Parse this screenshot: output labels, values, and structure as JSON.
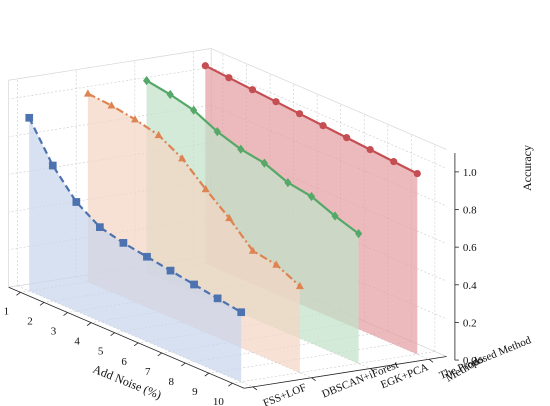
{
  "chart_data": {
    "type": "line",
    "projection": "3d-waterfall",
    "xlabel": "Add Noise (%)",
    "ylabel": "Methods",
    "zlabel": "Accuracy",
    "x": [
      1,
      2,
      3,
      4,
      5,
      6,
      7,
      8,
      9,
      10
    ],
    "x_ticks": [
      "1",
      "2",
      "3",
      "4",
      "5",
      "6",
      "7",
      "8",
      "9",
      "10"
    ],
    "zlim": [
      0.0,
      1.1
    ],
    "z_ticks": [
      "0.0",
      "0.2",
      "0.4",
      "0.6",
      "0.8",
      "1.0"
    ],
    "grid": true,
    "series": [
      {
        "name": "FSS+LOF",
        "color": "#4C72B0",
        "fill": "#c9d5ec",
        "line_style": "dashed",
        "marker": "square",
        "values": [
          0.92,
          0.72,
          0.58,
          0.5,
          0.47,
          0.45,
          0.43,
          0.41,
          0.39,
          0.37
        ]
      },
      {
        "name": "DBSCAN+iForest",
        "color": "#DD8452",
        "fill": "#f4d6c4",
        "line_style": "dashdot",
        "marker": "triangle",
        "values": [
          1.0,
          0.99,
          0.97,
          0.94,
          0.87,
          0.76,
          0.66,
          0.54,
          0.52,
          0.46
        ]
      },
      {
        "name": "EGK+PCA",
        "color": "#55A868",
        "fill": "#c0e2c8",
        "line_style": "solid",
        "marker": "diamond",
        "values": [
          1.02,
          1.0,
          0.97,
          0.91,
          0.87,
          0.85,
          0.8,
          0.78,
          0.73,
          0.69
        ]
      },
      {
        "name": "The Proposed Method",
        "color": "#C44E52",
        "fill": "#e4a0a3",
        "line_style": "solid",
        "marker": "circle",
        "values": [
          1.05,
          1.04,
          1.03,
          1.02,
          1.01,
          1.0,
          0.99,
          0.98,
          0.97,
          0.96
        ]
      }
    ]
  }
}
